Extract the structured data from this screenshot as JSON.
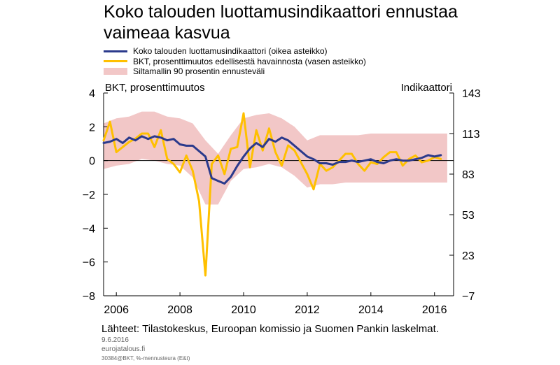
{
  "title_line1": "Koko talouden luottamusindikaattori ennustaa",
  "title_line2": "vaimeaa kasvua",
  "legend": [
    {
      "label": "Koko talouden luottamusindikaattori  (oikea asteikko)",
      "kind": "line",
      "color": "#2b3a8c"
    },
    {
      "label": "BKT, prosenttimuutos  edellisestä  havainnosta  (vasen asteikko)",
      "kind": "line",
      "color": "#ffc000"
    },
    {
      "label": "Siltamallin  90 prosentin ennusteväli",
      "kind": "band",
      "color": "#f2c7c7"
    }
  ],
  "source": "Lähteet: Tilastokeskus,  Euroopan komissio ja Suomen Pankin laskelmat.",
  "date": "9.6.2016",
  "site": "eurojatalous.fi",
  "code": "30384@BKT, %-mennusteura (E&t)",
  "chart_data": {
    "type": "line",
    "ylabel_left": "BKT, prosenttimuutos",
    "ylabel_right": "Indikaattori",
    "left_axis": {
      "ylim": [
        -8,
        4
      ],
      "ticks": [
        4,
        2,
        0,
        -2,
        -4,
        -6,
        -8
      ],
      "tick_labels": [
        "4",
        "2",
        "0",
        "−2",
        "−4",
        "−6",
        "−8"
      ]
    },
    "right_axis": {
      "ylim": [
        -7,
        143
      ],
      "ticks": [
        143,
        113,
        83,
        53,
        23,
        -7
      ],
      "tick_labels": [
        "143",
        "113",
        "83",
        "53",
        "23",
        "−7"
      ]
    },
    "x_axis": {
      "xlim": [
        2005.6,
        2016.6
      ],
      "ticks": [
        2006,
        2008,
        2010,
        2012,
        2014,
        2016
      ],
      "tick_labels": [
        "2006",
        "2008",
        "2010",
        "2012",
        "2014",
        "2016"
      ]
    },
    "grid": false,
    "zero_line": true,
    "series": [
      {
        "name": "Koko talouden luottamusindikaattori  (oikea asteikko)",
        "axis": "right",
        "color": "#2b3a8c",
        "x": [
          2005.6,
          2005.8,
          2006.0,
          2006.2,
          2006.4,
          2006.6,
          2006.8,
          2007.0,
          2007.2,
          2007.4,
          2007.6,
          2007.8,
          2008.0,
          2008.2,
          2008.4,
          2008.6,
          2008.8,
          2009.0,
          2009.2,
          2009.4,
          2009.6,
          2009.8,
          2010.0,
          2010.2,
          2010.4,
          2010.6,
          2010.8,
          2011.0,
          2011.2,
          2011.4,
          2011.6,
          2011.8,
          2012.0,
          2012.2,
          2012.4,
          2012.6,
          2012.8,
          2013.0,
          2013.2,
          2013.4,
          2013.6,
          2013.8,
          2014.0,
          2014.2,
          2014.4,
          2014.6,
          2014.8,
          2015.0,
          2015.2,
          2015.4,
          2015.6,
          2015.8,
          2016.0,
          2016.2
        ],
        "values": [
          106,
          107,
          109,
          106,
          110,
          108,
          111,
          109,
          111,
          110,
          108,
          109,
          105,
          104,
          104,
          100,
          96,
          80,
          78,
          76,
          81,
          89,
          96,
          102,
          106,
          103,
          109,
          107,
          110,
          108,
          104,
          100,
          96,
          94,
          91,
          91,
          90,
          92,
          92,
          93,
          92,
          93,
          94,
          92,
          91,
          93,
          94,
          93,
          93,
          94,
          95,
          97,
          96,
          97
        ]
      },
      {
        "name": "BKT, prosenttimuutos  edellisestä  havainnosta  (vasen asteikko)",
        "axis": "left",
        "color": "#ffc000",
        "x": [
          2005.6,
          2005.8,
          2006.0,
          2006.2,
          2006.4,
          2006.6,
          2006.8,
          2007.0,
          2007.2,
          2007.4,
          2007.6,
          2007.8,
          2008.0,
          2008.2,
          2008.4,
          2008.6,
          2008.8,
          2009.0,
          2009.2,
          2009.4,
          2009.6,
          2009.8,
          2010.0,
          2010.2,
          2010.4,
          2010.6,
          2010.8,
          2011.0,
          2011.2,
          2011.4,
          2011.6,
          2011.8,
          2012.0,
          2012.2,
          2012.4,
          2012.6,
          2012.8,
          2013.0,
          2013.2,
          2013.4,
          2013.6,
          2013.8,
          2014.0,
          2014.2,
          2014.4,
          2014.6,
          2014.8,
          2015.0,
          2015.2,
          2015.4,
          2015.6,
          2015.8,
          2016.0,
          2016.2
        ],
        "values": [
          1.2,
          2.3,
          0.5,
          0.8,
          1.1,
          1.3,
          1.6,
          1.6,
          0.8,
          1.8,
          0.1,
          -0.2,
          -0.7,
          0.3,
          -0.6,
          -2.4,
          -6.8,
          -0.2,
          0.3,
          -0.8,
          0.7,
          0.8,
          2.8,
          -0.4,
          1.8,
          0.6,
          1.9,
          0.5,
          -0.3,
          0.9,
          0.6,
          -0.1,
          -0.8,
          -1.7,
          -0.2,
          -0.6,
          -0.4,
          0.0,
          0.4,
          0.4,
          -0.2,
          -0.6,
          -0.1,
          -0.2,
          0.2,
          0.5,
          0.5,
          -0.3,
          0.1,
          0.3,
          -0.1,
          0.0,
          0.2,
          0.1
        ]
      }
    ],
    "band": {
      "name": "Siltamallin  90 prosentin ennusteväli",
      "axis": "left",
      "color": "#f2c7c7",
      "x": [
        2005.6,
        2006.0,
        2006.4,
        2006.8,
        2007.2,
        2007.6,
        2008.0,
        2008.4,
        2008.8,
        2009.2,
        2009.6,
        2010.0,
        2010.4,
        2010.8,
        2011.2,
        2011.6,
        2012.0,
        2012.4,
        2012.8,
        2013.2,
        2013.6,
        2014.0,
        2014.4,
        2014.8,
        2015.2,
        2015.6,
        2016.0,
        2016.4
      ],
      "upper": [
        2.2,
        2.5,
        2.6,
        2.9,
        2.9,
        2.6,
        2.5,
        2.2,
        1.2,
        0.4,
        1.5,
        2.5,
        2.7,
        2.8,
        2.5,
        2.0,
        1.2,
        1.5,
        1.5,
        1.5,
        1.5,
        1.6,
        1.6,
        1.6,
        1.6,
        1.6,
        1.6,
        1.6
      ],
      "lower": [
        -0.5,
        -0.3,
        -0.2,
        0.1,
        0.0,
        -0.2,
        -0.3,
        -1.0,
        -2.6,
        -2.6,
        -1.2,
        -0.5,
        -0.4,
        -0.2,
        -0.4,
        -0.9,
        -1.6,
        -1.4,
        -1.4,
        -1.3,
        -1.3,
        -1.3,
        -1.3,
        -1.3,
        -1.3,
        -1.3,
        -1.3,
        -1.3
      ]
    }
  }
}
